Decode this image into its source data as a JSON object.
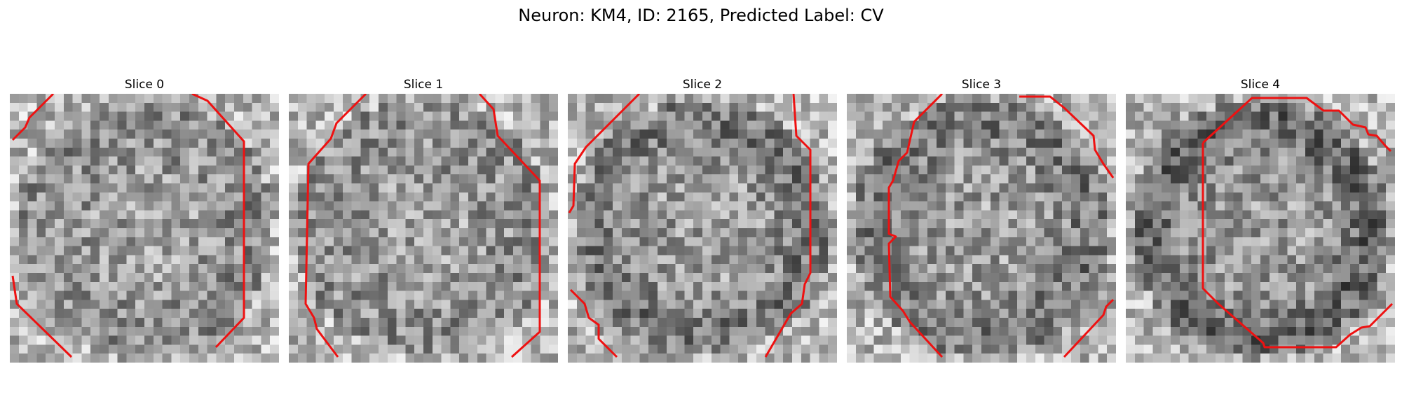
{
  "figure": {
    "title": "Neuron: KM4, ID: 2165, Predicted Label: CV"
  },
  "contour_color": "#ee1111",
  "grid_cells": 30,
  "slices": [
    {
      "title": "Slice 0",
      "seed": 11,
      "ring": 0.15,
      "contours": [
        "M 62 0 L 28 34 L 22 48 L 4 66",
        "M 260 0 L 282 10 L 334 68 L 334 320 L 294 362",
        "M 4 260 L 10 300 L 88 376"
      ]
    },
    {
      "title": "Slice 1",
      "seed": 23,
      "ring": 0.1,
      "contours": [
        "M 110 0 L 68 42 L 60 64 L 28 100 L 24 300 L 36 320 L 40 336 L 58 360 L 70 376",
        "M 272 0 L 292 22 L 298 60 L 358 124 L 358 340 L 318 376"
      ]
    },
    {
      "title": "Slice 2",
      "seed": 37,
      "ring": 0.45,
      "contours": [
        "M 102 0 L 26 76 L 10 100 L 8 160 L 2 170",
        "M 322 0 L 326 60 L 346 80 L 346 256 L 338 272 L 334 300 L 318 314 L 282 376",
        "M 4 280 L 24 300 L 30 320 L 44 330 L 44 350 L 70 376"
      ]
    },
    {
      "title": "Slice 3",
      "seed": 53,
      "ring": 0.45,
      "contours": [
        "M 136 0 L 96 40 L 86 84 L 74 96 L 66 124 L 60 134 L 60 200 L 70 204 L 60 214 L 62 290 L 80 310 L 90 326 L 136 376",
        "M 246 4 L 290 4 L 310 20 L 352 60 L 354 80 L 366 100 L 380 120",
        "M 380 294 L 370 304 L 366 316 L 310 376"
      ]
    },
    {
      "title": "Slice 4",
      "seed": 71,
      "ring": 0.7,
      "contours": [
        "M 110 70 L 180 6 L 258 6 L 282 24 L 304 24 L 324 44 L 342 48 L 346 58 L 358 60 L 370 74 L 378 82",
        "M 110 70 L 110 278 L 132 300 L 148 314 L 196 356 L 198 362 L 300 362 L 320 344 L 336 334 L 348 332 L 360 320 L 380 300"
      ]
    }
  ]
}
